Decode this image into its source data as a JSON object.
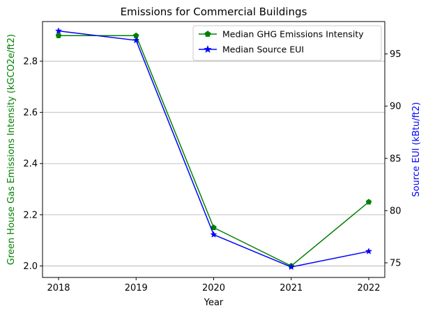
{
  "chart_data": {
    "type": "line",
    "title": "Emissions for Commercial Buildings",
    "xlabel": "Year",
    "ylabel_left": "Green House Gas Emissions Intensity (kGCO2e/ft2)",
    "ylabel_right": "Source EUI (kBtu/ft2)",
    "categories": [
      "2018",
      "2019",
      "2020",
      "2021",
      "2022"
    ],
    "y_left_lim": [
      1.955,
      2.955
    ],
    "y_left_ticks": [
      "2.0",
      "2.2",
      "2.4",
      "2.6",
      "2.8"
    ],
    "y_right_lim": [
      73.6,
      98.1
    ],
    "y_right_ticks": [
      "75",
      "80",
      "85",
      "90",
      "95"
    ],
    "grid": "horizontal",
    "legend_position": "upper-right",
    "series": [
      {
        "name": "Median GHG Emissions Intensity",
        "axis": "left",
        "color": "#008000",
        "marker": "pentagon",
        "values": [
          2.9,
          2.9,
          2.15,
          2.0,
          2.25
        ]
      },
      {
        "name": "Median Source EUI",
        "axis": "right",
        "color": "#0000ff",
        "marker": "star",
        "values": [
          97.2,
          96.3,
          77.7,
          74.6,
          76.1
        ]
      }
    ]
  }
}
